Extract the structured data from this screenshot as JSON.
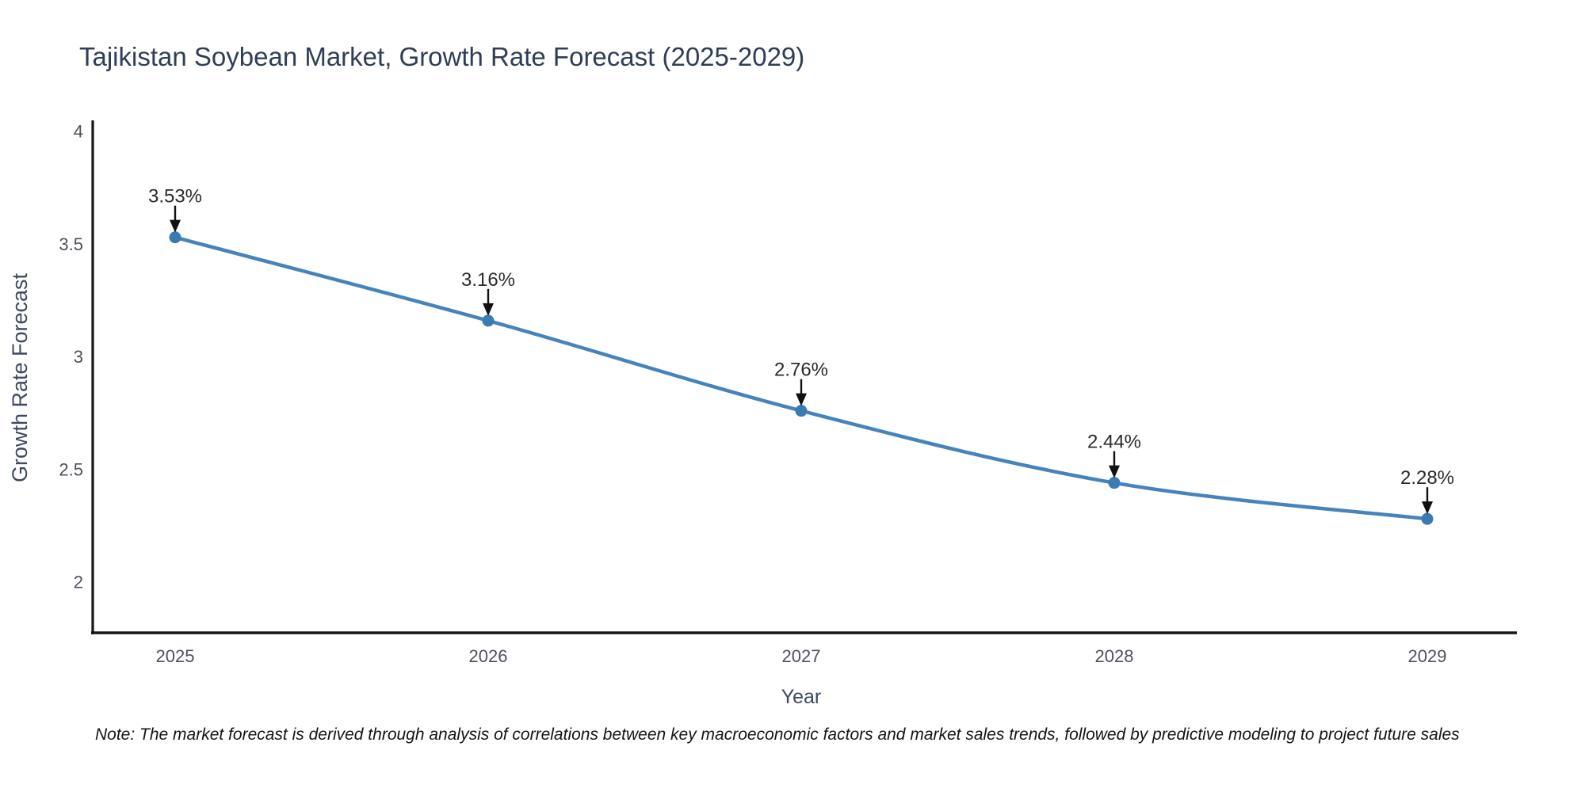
{
  "title": "Tajikistan Soybean Market, Growth Rate Forecast (2025-2029)",
  "note": "Note: The market forecast is derived through analysis of correlations between key macroeconomic factors and market sales trends, followed by predictive modeling to project future sales",
  "chart_data": {
    "type": "line",
    "title": "Tajikistan Soybean Market, Growth Rate Forecast (2025-2029)",
    "x": [
      2025,
      2026,
      2027,
      2028,
      2029
    ],
    "values": [
      3.53,
      3.16,
      2.76,
      2.44,
      2.28
    ],
    "data_labels": [
      "3.53%",
      "3.16%",
      "2.76%",
      "2.44%",
      "2.28%"
    ],
    "xlabel": "Year",
    "ylabel": "Growth Rate Forecast",
    "yticks": [
      4,
      3.5,
      3,
      2.5,
      2
    ],
    "ylim": [
      1.77,
      4.05
    ],
    "grid": false,
    "legend_position": "none",
    "line_color": "#4584BB",
    "marker_color": "#3C7AB4",
    "axis_color": "#161616",
    "tick_label_color": "#4c515c",
    "axis_title_color": "#3b4961",
    "data_label_color": "#2b2b2b",
    "annotation_arrow_color": "#111111",
    "title_color": "#2f3e56"
  }
}
